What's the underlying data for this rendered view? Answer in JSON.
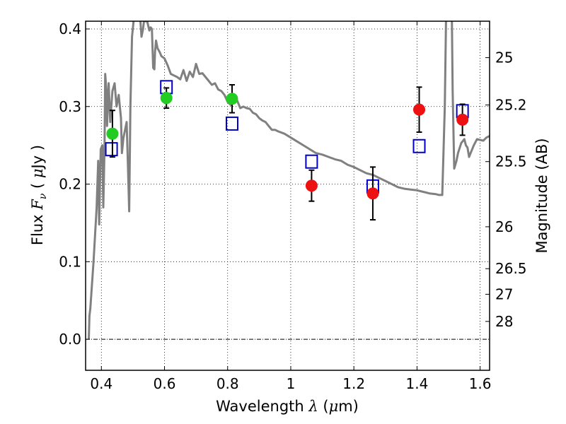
{
  "chart_data": {
    "type": "scatter",
    "xlabel": "Wavelength  λ (μm)",
    "ylabel": "Flux  Fν  ( μJy )",
    "y2label": "Magnitude (AB)",
    "xlim": [
      0.35,
      1.63
    ],
    "ylim": [
      -0.04,
      0.41
    ],
    "xticks": [
      0.4,
      0.6,
      0.8,
      1.0,
      1.2,
      1.4,
      1.6
    ],
    "xtick_labels": [
      "0.4",
      "0.6",
      "0.8",
      "1",
      "1.2",
      "1.4",
      "1.6"
    ],
    "yticks": [
      0.0,
      0.1,
      0.2,
      0.3,
      0.4
    ],
    "ytick_labels": [
      "0.0",
      "0.1",
      "0.2",
      "0.3",
      "0.4"
    ],
    "y2ticks": [
      {
        "label": "25",
        "flux": 0.363
      },
      {
        "label": "25.2",
        "flux": 0.302
      },
      {
        "label": "25.5",
        "flux": 0.229
      },
      {
        "label": "26",
        "flux": 0.145
      },
      {
        "label": "26.5",
        "flux": 0.091
      },
      {
        "label": "27",
        "flux": 0.058
      },
      {
        "label": "28",
        "flux": 0.023
      }
    ],
    "grid": true,
    "zero_line": true,
    "colors": {
      "model": "#808080",
      "green_points": "#22cc22",
      "red_points": "#ee1111",
      "model_squares": "#0000cc",
      "error_bars": "#000000"
    },
    "series": [
      {
        "kind": "line",
        "points": [
          [
            0.36,
            0.0
          ],
          [
            0.362,
            0.03
          ],
          [
            0.365,
            0.04
          ],
          [
            0.375,
            0.1
          ],
          [
            0.385,
            0.17
          ],
          [
            0.39,
            0.23
          ],
          [
            0.393,
            0.148
          ],
          [
            0.396,
            0.21
          ],
          [
            0.398,
            0.245
          ],
          [
            0.403,
            0.25
          ],
          [
            0.406,
            0.17
          ],
          [
            0.41,
            0.25
          ],
          [
            0.412,
            0.342
          ],
          [
            0.416,
            0.32
          ],
          [
            0.418,
            0.275
          ],
          [
            0.423,
            0.33
          ],
          [
            0.428,
            0.28
          ],
          [
            0.435,
            0.32
          ],
          [
            0.442,
            0.33
          ],
          [
            0.448,
            0.3
          ],
          [
            0.455,
            0.315
          ],
          [
            0.462,
            0.285
          ],
          [
            0.465,
            0.24
          ],
          [
            0.47,
            0.26
          ],
          [
            0.475,
            0.27
          ],
          [
            0.48,
            0.28
          ],
          [
            0.484,
            0.225
          ],
          [
            0.488,
            0.165
          ],
          [
            0.492,
            0.3
          ],
          [
            0.497,
            0.39
          ],
          [
            0.502,
            0.41
          ],
          [
            0.522,
            0.42
          ],
          [
            0.527,
            0.39
          ],
          [
            0.532,
            0.4
          ],
          [
            0.535,
            0.41
          ],
          [
            0.545,
            0.41
          ],
          [
            0.552,
            0.398
          ],
          [
            0.556,
            0.402
          ],
          [
            0.56,
            0.4
          ],
          [
            0.564,
            0.35
          ],
          [
            0.568,
            0.348
          ],
          [
            0.57,
            0.37
          ],
          [
            0.573,
            0.385
          ],
          [
            0.578,
            0.375
          ],
          [
            0.585,
            0.37
          ],
          [
            0.59,
            0.365
          ],
          [
            0.6,
            0.362
          ],
          [
            0.61,
            0.353
          ],
          [
            0.62,
            0.342
          ],
          [
            0.63,
            0.34
          ],
          [
            0.64,
            0.338
          ],
          [
            0.65,
            0.335
          ],
          [
            0.66,
            0.347
          ],
          [
            0.67,
            0.333
          ],
          [
            0.68,
            0.345
          ],
          [
            0.69,
            0.338
          ],
          [
            0.7,
            0.355
          ],
          [
            0.71,
            0.342
          ],
          [
            0.72,
            0.343
          ],
          [
            0.73,
            0.338
          ],
          [
            0.74,
            0.333
          ],
          [
            0.75,
            0.328
          ],
          [
            0.76,
            0.33
          ],
          [
            0.77,
            0.322
          ],
          [
            0.78,
            0.32
          ],
          [
            0.79,
            0.315
          ],
          [
            0.8,
            0.306
          ],
          [
            0.81,
            0.302
          ],
          [
            0.82,
            0.308
          ],
          [
            0.83,
            0.308
          ],
          [
            0.84,
            0.298
          ],
          [
            0.85,
            0.3
          ],
          [
            0.86,
            0.298
          ],
          [
            0.87,
            0.297
          ],
          [
            0.88,
            0.292
          ],
          [
            0.89,
            0.29
          ],
          [
            0.9,
            0.285
          ],
          [
            0.91,
            0.282
          ],
          [
            0.92,
            0.28
          ],
          [
            0.93,
            0.275
          ],
          [
            0.94,
            0.27
          ],
          [
            0.95,
            0.27
          ],
          [
            0.96,
            0.268
          ],
          [
            0.98,
            0.265
          ],
          [
            1.0,
            0.26
          ],
          [
            1.02,
            0.255
          ],
          [
            1.04,
            0.25
          ],
          [
            1.06,
            0.245
          ],
          [
            1.08,
            0.24
          ],
          [
            1.1,
            0.238
          ],
          [
            1.12,
            0.235
          ],
          [
            1.14,
            0.232
          ],
          [
            1.16,
            0.23
          ],
          [
            1.18,
            0.225
          ],
          [
            1.2,
            0.222
          ],
          [
            1.22,
            0.218
          ],
          [
            1.24,
            0.214
          ],
          [
            1.26,
            0.212
          ],
          [
            1.28,
            0.208
          ],
          [
            1.3,
            0.204
          ],
          [
            1.32,
            0.2
          ],
          [
            1.34,
            0.196
          ],
          [
            1.36,
            0.194
          ],
          [
            1.38,
            0.193
          ],
          [
            1.4,
            0.192
          ],
          [
            1.42,
            0.19
          ],
          [
            1.44,
            0.188
          ],
          [
            1.46,
            0.187
          ],
          [
            1.47,
            0.186
          ],
          [
            1.48,
            0.186
          ],
          [
            1.488,
            0.3
          ],
          [
            1.492,
            0.41
          ],
          [
            1.5,
            0.44
          ],
          [
            1.505,
            0.44
          ],
          [
            1.51,
            0.43
          ],
          [
            1.513,
            0.32
          ],
          [
            1.518,
            0.22
          ],
          [
            1.525,
            0.23
          ],
          [
            1.53,
            0.24
          ],
          [
            1.54,
            0.253
          ],
          [
            1.55,
            0.258
          ],
          [
            1.555,
            0.25
          ],
          [
            1.56,
            0.247
          ],
          [
            1.565,
            0.235
          ],
          [
            1.57,
            0.24
          ],
          [
            1.58,
            0.25
          ],
          [
            1.59,
            0.258
          ],
          [
            1.6,
            0.257
          ],
          [
            1.61,
            0.256
          ],
          [
            1.62,
            0.26
          ],
          [
            1.63,
            0.262
          ]
        ]
      },
      {
        "kind": "points",
        "marker": "circle",
        "color_key": "green_points",
        "points": [
          {
            "x": 0.435,
            "y": 0.265,
            "err": 0.03
          },
          {
            "x": 0.606,
            "y": 0.311,
            "err": 0.013
          },
          {
            "x": 0.814,
            "y": 0.31,
            "err": 0.018
          }
        ]
      },
      {
        "kind": "points",
        "marker": "circle",
        "color_key": "red_points",
        "points": [
          {
            "x": 1.066,
            "y": 0.198,
            "err": 0.02
          },
          {
            "x": 1.26,
            "y": 0.188,
            "err": 0.034
          },
          {
            "x": 1.407,
            "y": 0.296,
            "err": 0.029
          },
          {
            "x": 1.544,
            "y": 0.283,
            "err": 0.02
          }
        ]
      },
      {
        "kind": "points",
        "marker": "square",
        "color_key": "model_squares",
        "points": [
          {
            "x": 0.432,
            "y": 0.245
          },
          {
            "x": 0.606,
            "y": 0.325
          },
          {
            "x": 0.814,
            "y": 0.278
          },
          {
            "x": 1.066,
            "y": 0.229
          },
          {
            "x": 1.26,
            "y": 0.197
          },
          {
            "x": 1.407,
            "y": 0.249
          },
          {
            "x": 1.544,
            "y": 0.294
          }
        ]
      }
    ]
  }
}
